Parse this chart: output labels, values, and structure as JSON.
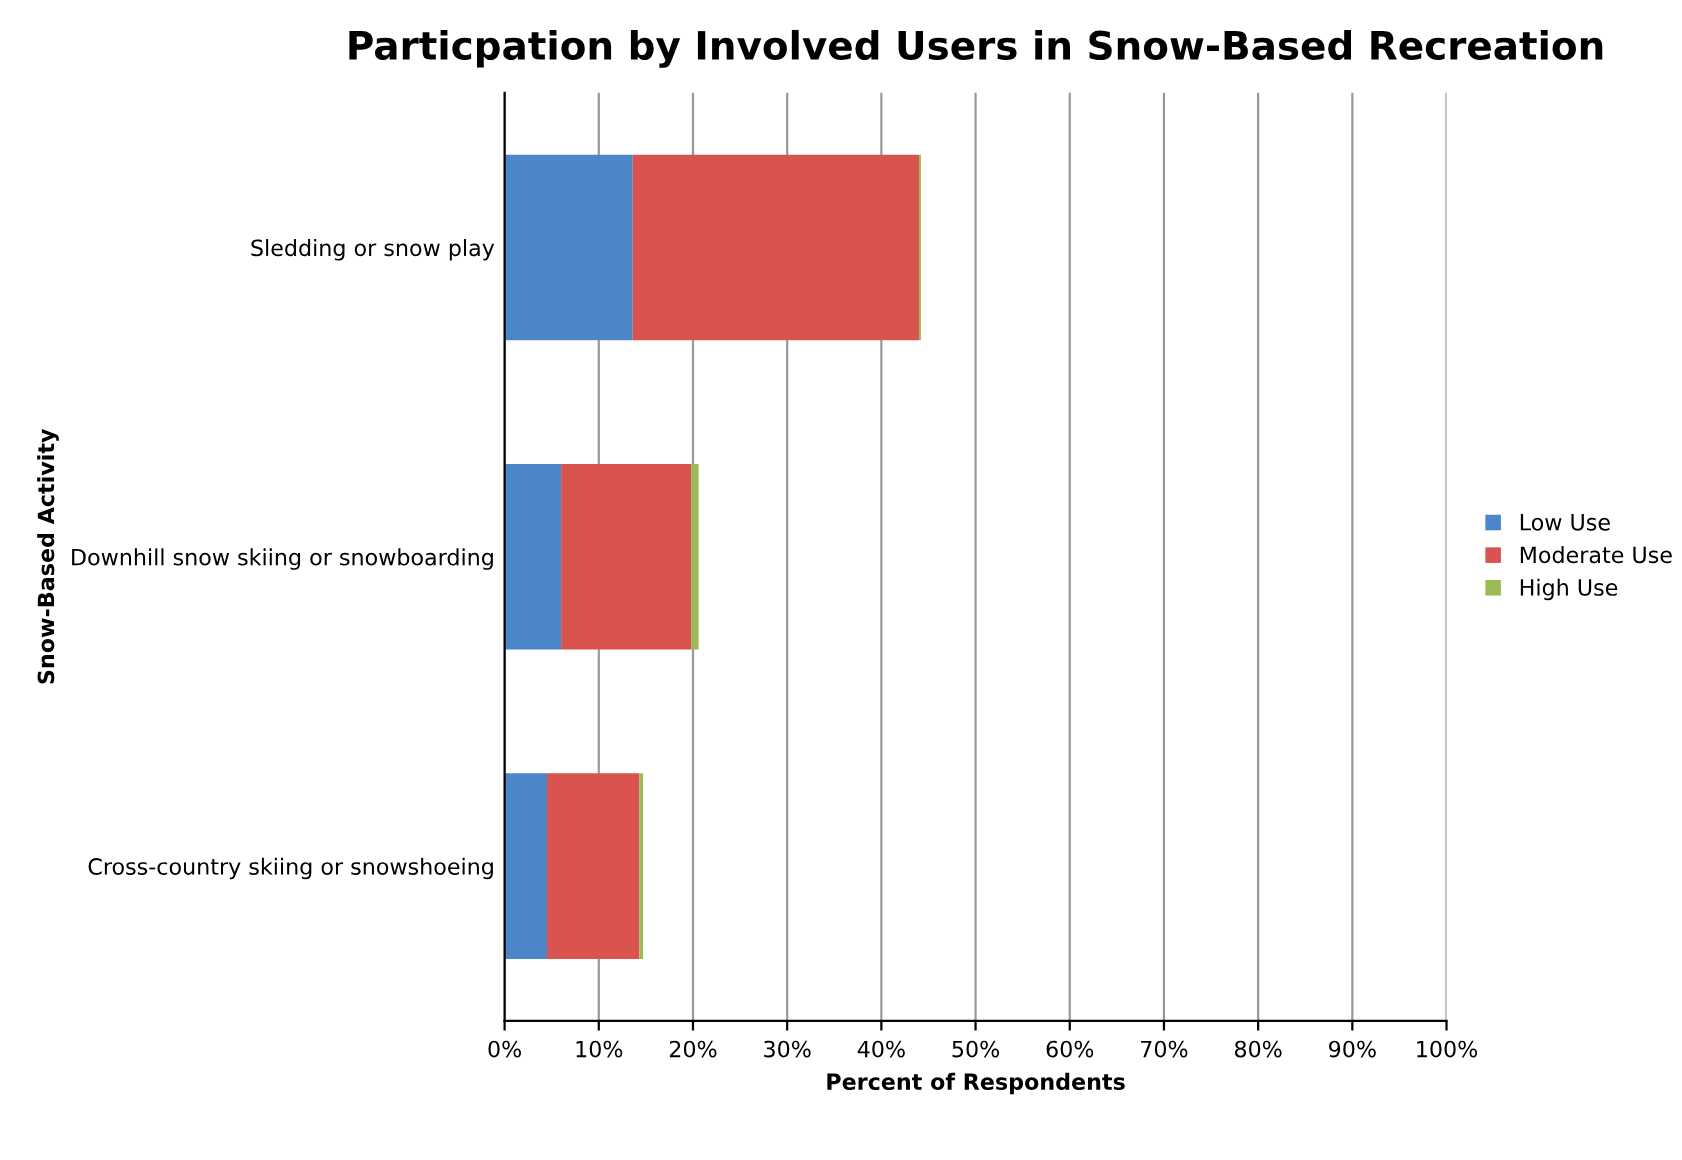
{
  "chart_data": {
    "type": "bar",
    "orientation": "horizontal",
    "stacked": true,
    "title": "Particpation by Involved Users in Snow-Based Recreation",
    "xlabel": "Percent of Respondents",
    "ylabel": "Snow-Based Activity",
    "categories": [
      "Sledding or snow play",
      "Downhill snow skiing or snowboarding",
      "Cross-country skiing or snowshoeing"
    ],
    "series": [
      {
        "name": "Low Use",
        "color": "#4a86c8",
        "values": [
          13.6,
          6,
          4.5
        ]
      },
      {
        "name": "Moderate Use",
        "color": "#d9534f",
        "values": [
          30.4,
          13.8,
          9.8
        ]
      },
      {
        "name": "High Use",
        "color": "#9bbb59",
        "values": [
          0.2,
          0.8,
          0.4
        ]
      }
    ],
    "xlim": [
      0,
      100
    ],
    "xticks": [
      {
        "value": 0,
        "label": "0%"
      },
      {
        "value": 10,
        "label": "10%"
      },
      {
        "value": 20,
        "label": "20%"
      },
      {
        "value": 30,
        "label": "30%"
      },
      {
        "value": 40,
        "label": "40%"
      },
      {
        "value": 50,
        "label": "50%"
      },
      {
        "value": 60,
        "label": "60%"
      },
      {
        "value": 70,
        "label": "70%"
      },
      {
        "value": 80,
        "label": "80%"
      },
      {
        "value": 90,
        "label": "90%"
      },
      {
        "value": 100,
        "label": "100%"
      }
    ],
    "grid": "x",
    "legend": "right"
  }
}
